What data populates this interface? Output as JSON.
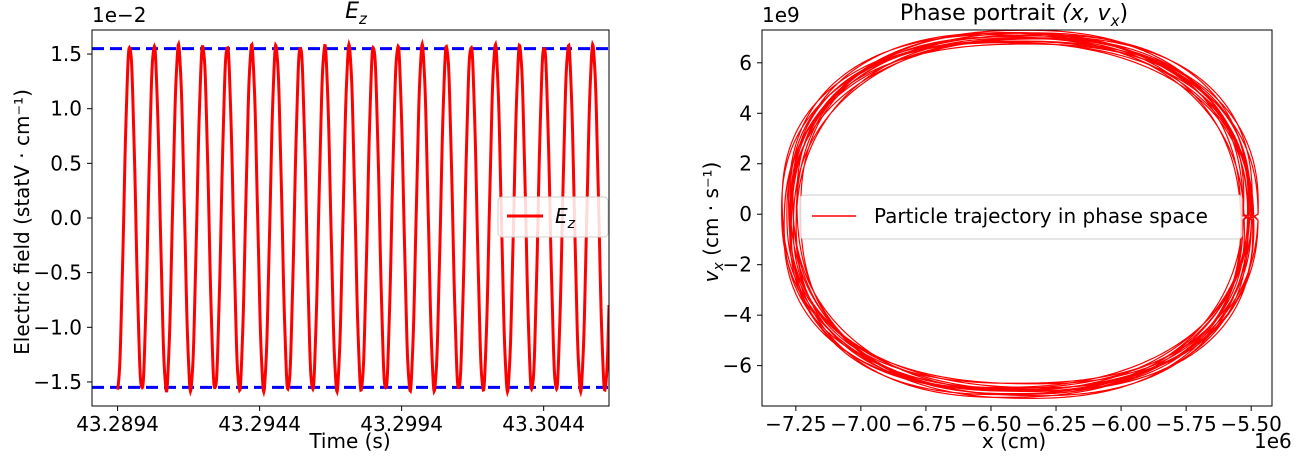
{
  "chart_data": [
    {
      "type": "line",
      "title_base": "E",
      "title_sub": "z",
      "xlabel": "Time (s)",
      "ylabel": "Electric field (statV · cm⁻¹)",
      "y_offset": "1e−2",
      "xlim": [
        43.2885,
        43.3067
      ],
      "ylim": [
        -1.72,
        1.72
      ],
      "x_ticks": [
        43.2894,
        43.2944,
        43.2994,
        43.3044
      ],
      "x_tick_labels": [
        "43.2894",
        "43.2944",
        "43.2994",
        "43.3044"
      ],
      "y_ticks": [
        -1.5,
        -1.0,
        -0.5,
        0.0,
        0.5,
        1.0,
        1.5
      ],
      "y_tick_labels": [
        "−1.5",
        "−1.0",
        "−0.5",
        "0.0",
        "0.5",
        "1.0",
        "1.5"
      ],
      "series": [
        {
          "name_base": "E",
          "name_sub": "z",
          "color": "#ff0000",
          "type": "sinusoid",
          "amplitude": 1.57,
          "period_s": 0.000858,
          "start_x": 43.2894,
          "end_x": 43.3067,
          "start_phase_value": -1.57
        }
      ],
      "reference_lines": [
        {
          "y": 1.55,
          "color": "#0000ff",
          "style": "dashed"
        },
        {
          "y": -1.55,
          "color": "#0000ff",
          "style": "dashed"
        }
      ],
      "legend_position": "center-right",
      "grid": false
    },
    {
      "type": "line",
      "title_base": "Phase portrait ",
      "title_math": "(x, v",
      "title_sub": "x",
      "title_end": ")",
      "xlabel": "x (cm)",
      "ylabel_base": "v",
      "ylabel_sub": "x",
      "ylabel_rest": " (cm · s⁻¹)",
      "x_offset": "1e6",
      "y_offset": "1e9",
      "xlim": [
        -7.38,
        -5.42
      ],
      "ylim": [
        -7.6,
        7.3
      ],
      "x_ticks": [
        -7.25,
        -7.0,
        -6.75,
        -6.5,
        -6.25,
        -6.0,
        -5.75,
        -5.5
      ],
      "x_tick_labels": [
        "−7.25",
        "−7.00",
        "−6.75",
        "−6.50",
        "−6.25",
        "−6.00",
        "−5.75",
        "−5.50"
      ],
      "y_ticks": [
        -6,
        -4,
        -2,
        0,
        2,
        4,
        6
      ],
      "y_tick_labels": [
        "−6",
        "−4",
        "−2",
        "0",
        "2",
        "4",
        "6"
      ],
      "series": [
        {
          "name": "Particle trajectory in phase space",
          "color": "#ff0000",
          "type": "closed-orbit",
          "center_x": -6.39,
          "center_y": 0.0,
          "x_min": -7.27,
          "x_max": -5.51,
          "y_min": -7.0,
          "y_max": 7.0
        }
      ],
      "legend_position": "center",
      "grid": false
    }
  ]
}
